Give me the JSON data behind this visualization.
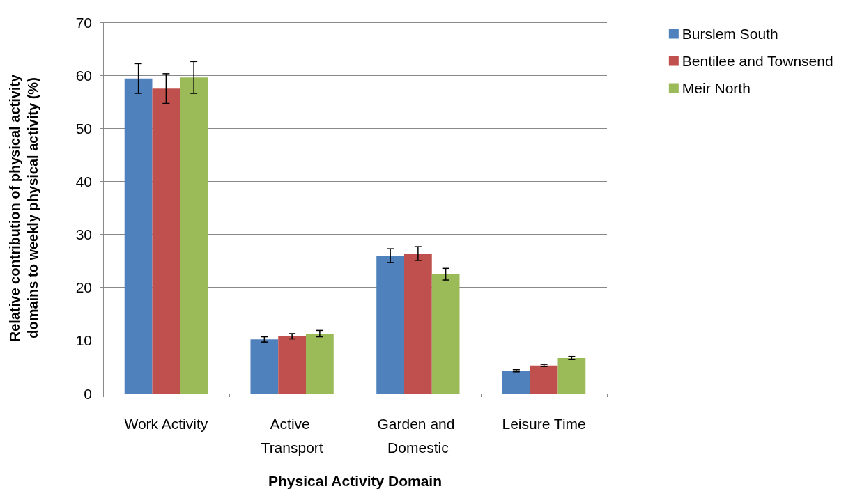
{
  "chart_data": {
    "type": "bar",
    "xlabel": "Physical Activity Domain",
    "ylabel": "Relative contribution of physical activity domains to weekly physical activity (%)",
    "categories": [
      "Work Activity",
      "Active Transport",
      "Garden and Domestic",
      "Leisure Time"
    ],
    "series": [
      {
        "name": "Burslem South",
        "color": "#4f81bd",
        "values": [
          59.4,
          10.2,
          26.0,
          4.3
        ],
        "errors": [
          2.8,
          0.5,
          1.3,
          0.2
        ]
      },
      {
        "name": "Bentilee and Townsend",
        "color": "#c0504d",
        "values": [
          57.5,
          10.8,
          26.4,
          5.3
        ],
        "errors": [
          2.8,
          0.5,
          1.3,
          0.2
        ]
      },
      {
        "name": "Meir North",
        "color": "#9bbb59",
        "values": [
          59.6,
          11.3,
          22.5,
          6.7
        ],
        "errors": [
          3.0,
          0.6,
          1.1,
          0.3
        ]
      }
    ],
    "ylim": [
      0,
      70
    ],
    "yticks": [
      0,
      10,
      20,
      30,
      40,
      50,
      60,
      70
    ],
    "grid": "y",
    "legend": "top right"
  }
}
